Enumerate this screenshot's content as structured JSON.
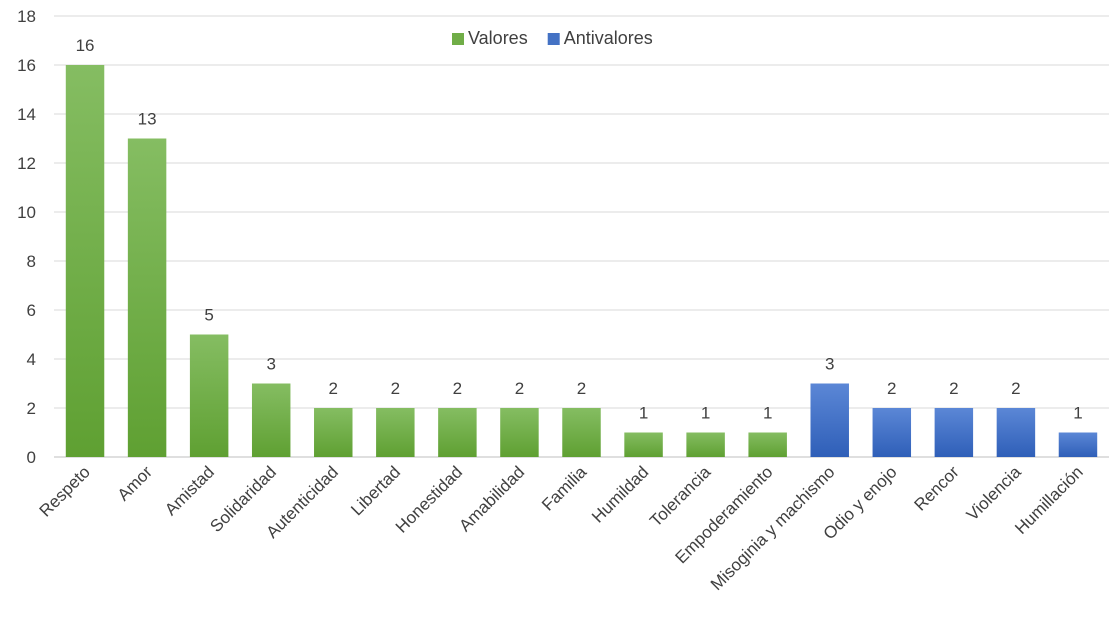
{
  "chart_data": {
    "type": "bar",
    "title": "",
    "xlabel": "",
    "ylabel": "",
    "ylim": [
      0,
      18
    ],
    "ytick_step": 2,
    "grid": true,
    "legend_position": "top-center",
    "categories": [
      "Respeto",
      "Amor",
      "Amistad",
      "Solidaridad",
      "Autenticidad",
      "Libertad",
      "Honestidad",
      "Amabilidad",
      "Familia",
      "Humildad",
      "Tolerancia",
      "Empoderamiento",
      "Misoginia y machismo",
      "Odio y enojo",
      "Rencor",
      "Violencia",
      "Humillación"
    ],
    "series": [
      {
        "name": "Valores",
        "color": "#70ad47",
        "values": [
          16,
          13,
          5,
          3,
          2,
          2,
          2,
          2,
          2,
          1,
          1,
          1,
          null,
          null,
          null,
          null,
          null
        ]
      },
      {
        "name": "Antivalores",
        "color": "#4472c4",
        "values": [
          null,
          null,
          null,
          null,
          null,
          null,
          null,
          null,
          null,
          null,
          null,
          null,
          3,
          2,
          2,
          2,
          1
        ]
      }
    ]
  }
}
